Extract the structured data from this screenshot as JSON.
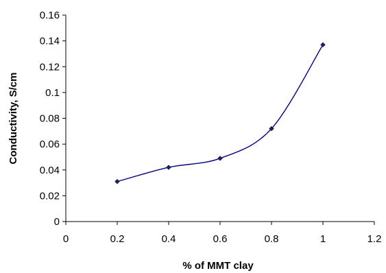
{
  "colors": {
    "axis": "#000000",
    "line": "#000080",
    "marker": "#1f1f5c"
  },
  "chart_data": {
    "type": "line",
    "title": "",
    "xlabel": "% of MMT clay",
    "ylabel": "Conductivity, S/cm",
    "xlim": [
      0,
      1.2
    ],
    "ylim": [
      0,
      0.16
    ],
    "xticks": [
      "0",
      "0.2",
      "0.4",
      "0.6",
      "0.8",
      "1",
      "1.2"
    ],
    "yticks": [
      "0",
      "0.02",
      "0.04",
      "0.06",
      "0.08",
      "0.1",
      "0.12",
      "0.14",
      "0.16"
    ],
    "grid": false,
    "legend": "none",
    "smooth": true,
    "series": [
      {
        "x": [
          0.2,
          0.4,
          0.6,
          0.8,
          1.0
        ],
        "y": [
          0.031,
          0.042,
          0.049,
          0.072,
          0.137
        ]
      }
    ]
  }
}
